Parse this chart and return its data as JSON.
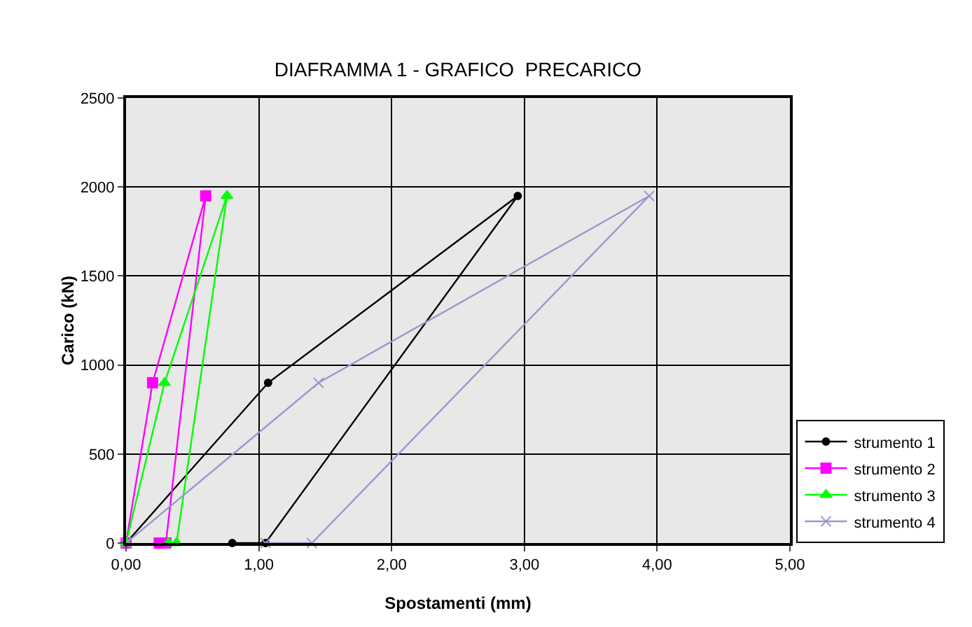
{
  "chart_data": {
    "type": "line",
    "title": "DIAFRAMMA 1 - GRAFICO  PRECARICO",
    "xlabel": "Spostamenti (mm)",
    "ylabel": "Carico (kN)",
    "series": [
      {
        "name": "strumento 1",
        "color": "#000000",
        "marker": "circle",
        "x": [
          0,
          1.07,
          2.95,
          1.05,
          0.8
        ],
        "values": [
          0,
          900,
          1950,
          0,
          0
        ]
      },
      {
        "name": "strumento 2",
        "color": "#ff00ff",
        "marker": "square",
        "x": [
          0,
          0.2,
          0.6,
          0.3,
          0.25
        ],
        "values": [
          0,
          900,
          1950,
          0,
          0
        ]
      },
      {
        "name": "strumento 3",
        "color": "#00ff00",
        "marker": "triangle",
        "x": [
          0,
          0.29,
          0.76,
          0.38,
          0.32
        ],
        "values": [
          0,
          900,
          1950,
          0,
          0
        ]
      },
      {
        "name": "strumento 4",
        "color": "#9999cc",
        "marker": "cross",
        "x": [
          0,
          1.45,
          3.94,
          1.4,
          1.05
        ],
        "values": [
          0,
          900,
          1950,
          0,
          0
        ]
      }
    ],
    "xlim": [
      0,
      5
    ],
    "xticks": [
      {
        "value": 0,
        "label": "0,00"
      },
      {
        "value": 1,
        "label": "1,00"
      },
      {
        "value": 2,
        "label": "2,00"
      },
      {
        "value": 3,
        "label": "3,00"
      },
      {
        "value": 4,
        "label": "4,00"
      },
      {
        "value": 5,
        "label": "5,00"
      }
    ],
    "ylim": [
      0,
      2500
    ],
    "yticks": [
      0,
      500,
      1000,
      1500,
      2000,
      2500
    ],
    "grid": true,
    "legend": "bottom right"
  }
}
